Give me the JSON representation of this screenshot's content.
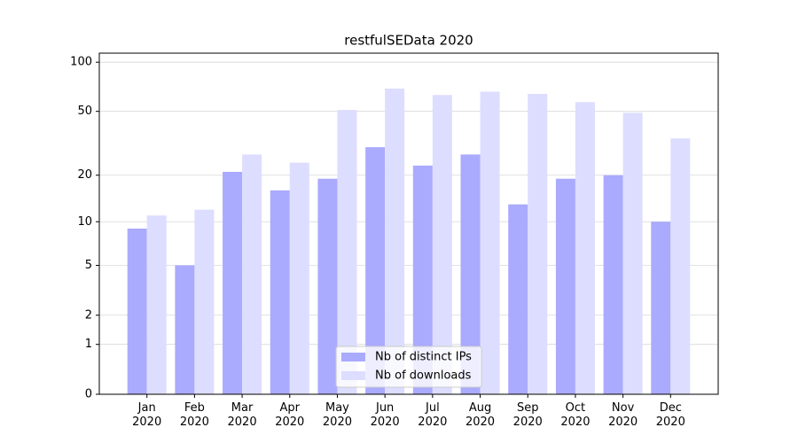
{
  "chart_data": {
    "type": "bar",
    "title": "restfulSEData 2020",
    "categories": [
      "Jan\n2020",
      "Feb\n2020",
      "Mar\n2020",
      "Apr\n2020",
      "May\n2020",
      "Jun\n2020",
      "Jul\n2020",
      "Aug\n2020",
      "Sep\n2020",
      "Oct\n2020",
      "Nov\n2020",
      "Dec\n2020"
    ],
    "series": [
      {
        "name": "Nb of distinct IPs",
        "color": "#aaaaff",
        "values": [
          9,
          5,
          21,
          16,
          19,
          30,
          23,
          27,
          13,
          19,
          20,
          10
        ]
      },
      {
        "name": "Nb of downloads",
        "color": "#ddddff",
        "values": [
          11,
          12,
          27,
          24,
          51,
          69,
          63,
          66,
          64,
          57,
          49,
          34
        ]
      }
    ],
    "yscale": "log1p",
    "ylim": [
      0,
      113.5
    ],
    "yticks": [
      0,
      1,
      2,
      5,
      10,
      20,
      50,
      100
    ],
    "grid": true,
    "legend": "lower center"
  }
}
